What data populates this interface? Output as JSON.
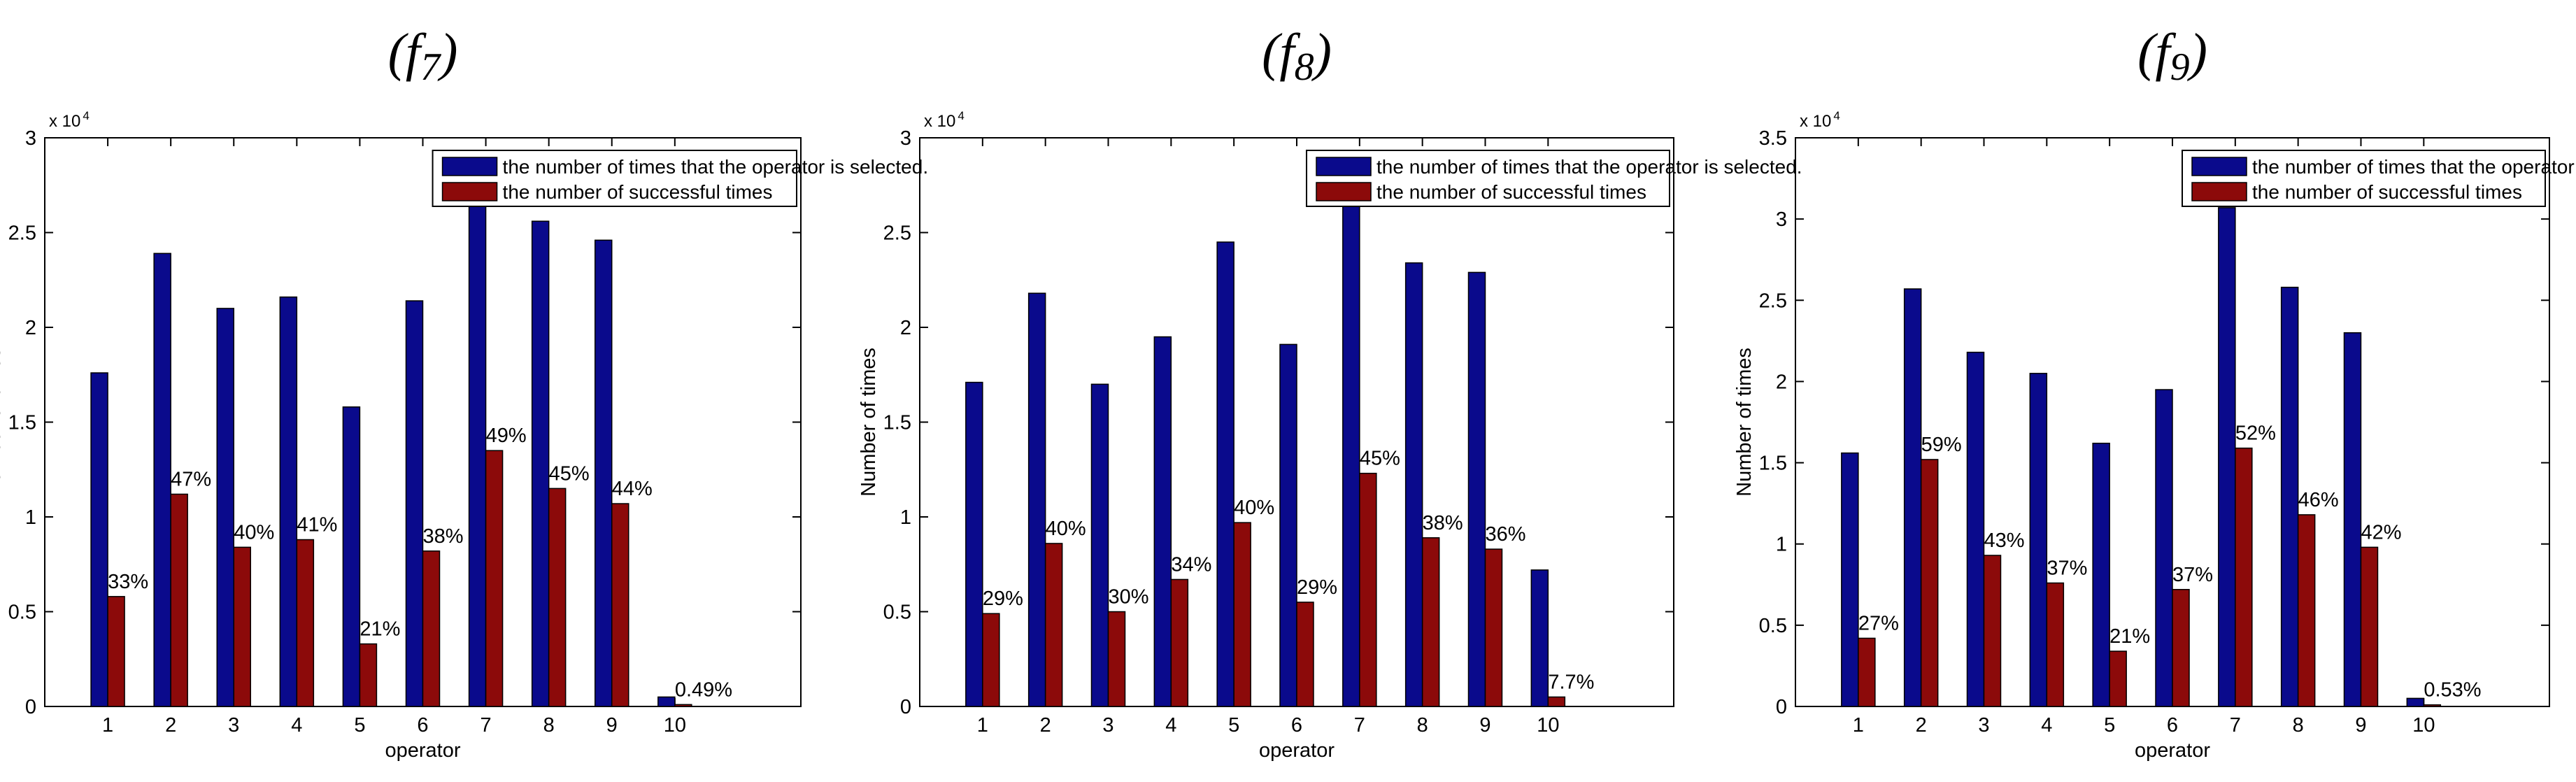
{
  "colors": {
    "selected": "#0a0a8c",
    "successful": "#8c0a0a",
    "axis": "#000000",
    "background": "#ffffff"
  },
  "chart_data": [
    {
      "type": "bar",
      "title_main": "(f",
      "title_sub": "7",
      "title_close": ")",
      "xlabel": "operator",
      "ylabel": "Number of times",
      "exponent_label": "x 10",
      "exponent_power": "4",
      "categories": [
        "1",
        "2",
        "3",
        "4",
        "5",
        "6",
        "7",
        "8",
        "9",
        "10"
      ],
      "ylim": [
        0,
        3
      ],
      "yticks": [
        0,
        0.5,
        1,
        1.5,
        2,
        2.5,
        3
      ],
      "ytick_labels": [
        "0",
        "0.5",
        "1",
        "1.5",
        "2",
        "2.5",
        "3"
      ],
      "xlim": [
        0,
        12
      ],
      "legend_position": "top-right",
      "series": [
        {
          "name": "the number of times that the operator is selected.",
          "values": [
            1.76,
            2.39,
            2.1,
            2.16,
            1.58,
            2.14,
            2.72,
            2.56,
            2.46,
            0.05
          ]
        },
        {
          "name": "the number of successful times",
          "values": [
            0.58,
            1.12,
            0.84,
            0.88,
            0.33,
            0.82,
            1.35,
            1.15,
            1.07,
            0.01
          ]
        }
      ],
      "percent_labels": [
        "33%",
        "47%",
        "40%",
        "41%",
        "21%",
        "38%",
        "49%",
        "45%",
        "44%",
        "0.49%"
      ]
    },
    {
      "type": "bar",
      "title_main": "(f",
      "title_sub": "8",
      "title_close": ")",
      "xlabel": "operator",
      "ylabel": "Number of times",
      "exponent_label": "x 10",
      "exponent_power": "4",
      "categories": [
        "1",
        "2",
        "3",
        "4",
        "5",
        "6",
        "7",
        "8",
        "9",
        "10"
      ],
      "ylim": [
        0,
        3
      ],
      "yticks": [
        0,
        0.5,
        1,
        1.5,
        2,
        2.5,
        3
      ],
      "ytick_labels": [
        "0",
        "0.5",
        "1",
        "1.5",
        "2",
        "2.5",
        "3"
      ],
      "xlim": [
        0,
        12
      ],
      "legend_position": "top-right",
      "series": [
        {
          "name": "the number of times that the operator is selected.",
          "values": [
            1.71,
            2.18,
            1.7,
            1.95,
            2.45,
            1.91,
            2.72,
            2.34,
            2.29,
            0.72
          ]
        },
        {
          "name": "the number of successful times",
          "values": [
            0.49,
            0.86,
            0.5,
            0.67,
            0.97,
            0.55,
            1.23,
            0.89,
            0.83,
            0.05
          ]
        }
      ],
      "percent_labels": [
        "29%",
        "40%",
        "30%",
        "34%",
        "40%",
        "29%",
        "45%",
        "38%",
        "36%",
        "7.7%"
      ]
    },
    {
      "type": "bar",
      "title_main": "(f",
      "title_sub": "9",
      "title_close": ")",
      "xlabel": "operator",
      "ylabel": "Number of times",
      "exponent_label": "x 10",
      "exponent_power": "4",
      "categories": [
        "1",
        "2",
        "3",
        "4",
        "5",
        "6",
        "7",
        "8",
        "9",
        "10"
      ],
      "ylim": [
        0,
        3.5
      ],
      "yticks": [
        0,
        0.5,
        1,
        1.5,
        2,
        2.5,
        3,
        3.5
      ],
      "ytick_labels": [
        "0",
        "0.5",
        "1",
        "1.5",
        "2",
        "2.5",
        "3",
        "3.5"
      ],
      "xlim": [
        0,
        12
      ],
      "legend_position": "top-right",
      "series": [
        {
          "name": "the number of times that the operator is selected.",
          "values": [
            1.56,
            2.57,
            2.18,
            2.05,
            1.62,
            1.95,
            3.07,
            2.58,
            2.3,
            0.05
          ]
        },
        {
          "name": "the number of successful times",
          "values": [
            0.42,
            1.52,
            0.93,
            0.76,
            0.34,
            0.72,
            1.59,
            1.18,
            0.98,
            0.01
          ]
        }
      ],
      "percent_labels": [
        "27%",
        "59%",
        "43%",
        "37%",
        "21%",
        "37%",
        "52%",
        "46%",
        "42%",
        "0.53%"
      ]
    }
  ]
}
